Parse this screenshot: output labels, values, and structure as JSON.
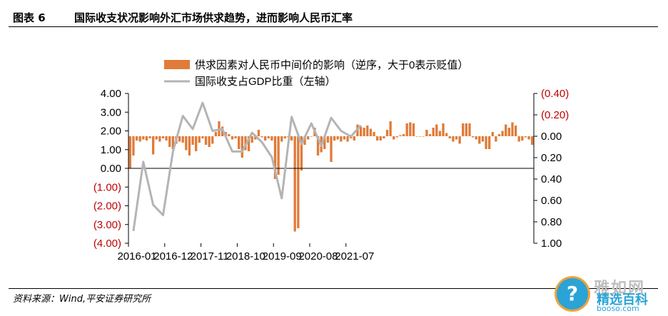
{
  "header": {
    "figure_label": "图表 6",
    "title": "国际收支状况影响外汇市场供求趋势，进而影响人民币汇率"
  },
  "footer": {
    "source": "资料来源：Wind,平安证券研究所"
  },
  "watermark": {
    "logo_glyph": "?",
    "text_top": "雅如网",
    "text_main": "精选百科",
    "text_url": "booso.com"
  },
  "colors": {
    "bar": "#e07b39",
    "line": "#b4b4b4",
    "right_axis_text": "#c00000"
  },
  "chart_data": {
    "type": "bar+line",
    "legend_position": "top",
    "grid": false,
    "left_axis": {
      "ylim": [
        -4,
        4
      ],
      "tick_values": [
        4,
        3,
        2,
        1,
        0,
        -1,
        -2,
        -3,
        -4
      ],
      "tick_labels": [
        "4.00",
        "3.00",
        "2.00",
        "1.00",
        "0.00",
        "(1.00)",
        "(2.00)",
        "(3.00)",
        "(4.00)"
      ]
    },
    "right_axis": {
      "reversed": true,
      "ylim": [
        -0.4,
        1.0
      ],
      "tick_values": [
        -0.4,
        -0.2,
        0,
        0.2,
        0.4,
        0.6,
        0.8,
        1.0
      ],
      "tick_labels": [
        "(0.40)",
        "(0.20)",
        "0.00",
        "0.20",
        "0.40",
        "0.60",
        "0.80",
        "1.00"
      ]
    },
    "x_tick_labels": [
      "2016-01",
      "2016-12",
      "2017-11",
      "2018-10",
      "2019-09",
      "2020-08",
      "2021-07"
    ],
    "x_tick_positions": [
      0,
      11,
      22,
      33,
      44,
      55,
      66
    ],
    "series": [
      {
        "name": "供求因素对人民币中间价的影响（逆序，大于0表示贬值）",
        "kind": "bar",
        "axis": "right",
        "values": [
          0.3,
          0.18,
          0.04,
          0.05,
          0.03,
          0.04,
          0.02,
          0.17,
          0.03,
          0.05,
          0.02,
          0.04,
          0.1,
          0.12,
          0.07,
          0.05,
          0.06,
          0.13,
          0.18,
          0.08,
          0.14,
          0.06,
          0.02,
          0.08,
          0.1,
          0.07,
          -0.04,
          -0.14,
          -0.09,
          -0.04,
          -0.02,
          0.03,
          0.02,
          0.12,
          0.2,
          0.13,
          0.14,
          0.06,
          0.03,
          -0.06,
          0.01,
          0.04,
          0.02,
          0.04,
          0.4,
          0.36,
          0.05,
          0.02,
          0.01,
          0.04,
          0.89,
          0.86,
          0.32,
          0.08,
          0.03,
          0.0,
          -0.08,
          0.18,
          0.15,
          0.12,
          0.06,
          0.24,
          0.04,
          0.03,
          0.05,
          0.03,
          0.05,
          0.02,
          0.04,
          -0.11,
          -0.09,
          -0.08,
          -0.1,
          -0.07,
          -0.04,
          0.04,
          0.04,
          0.02,
          -0.06,
          -0.14,
          0.03,
          0.01,
          -0.01,
          -0.02,
          -0.12,
          -0.13,
          -0.12,
          0.0,
          0.0,
          0.0,
          -0.06,
          -0.02,
          -0.08,
          -0.11,
          -0.05,
          -0.12,
          -0.03,
          0.02,
          0.05,
          0.03,
          0.07,
          -0.12,
          -0.12,
          -0.12,
          0.01,
          0.03,
          0.07,
          0.05,
          0.12,
          0.12,
          -0.04,
          0.05,
          -0.02,
          -0.05,
          -0.11,
          -0.08,
          -0.13,
          -0.1,
          0.05,
          0.04,
          0.01,
          0.03,
          0.08
        ]
      },
      {
        "name": "国际收支占GDP比重（左轴）",
        "kind": "line",
        "axis": "left",
        "x": [
          1,
          4,
          7,
          10,
          13,
          16,
          19,
          22,
          25,
          28,
          31,
          34,
          37,
          40,
          43,
          46,
          49,
          52,
          55,
          58,
          61,
          64,
          67,
          70
        ],
        "values": [
          -3.35,
          0.35,
          -1.95,
          -2.5,
          0.9,
          2.8,
          2.1,
          3.5,
          2.0,
          2.1,
          0.9,
          0.9,
          1.9,
          1.4,
          0.6,
          -1.6,
          2.75,
          1.3,
          2.4,
          1.2,
          2.7,
          2.0,
          1.7,
          2.3
        ]
      }
    ]
  }
}
